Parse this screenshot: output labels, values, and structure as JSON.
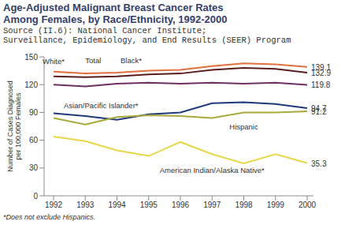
{
  "chart_data": {
    "type": "line",
    "title": [
      "Age-Adjusted Malignant Breast Cancer Rates",
      "Among Females, by Race/Ethnicity, 1992-2000"
    ],
    "subtitle": [
      "Source (II.6): National Cancer Institute;",
      "Surveillance, Epidemiology, and End Results (SEER) Program"
    ],
    "ylabel": [
      "Number of Cases Diagnosed",
      "per 100,000 Females"
    ],
    "annotations": [
      "*Does not exclude Hispanics."
    ],
    "categories": [
      "1992",
      "1993",
      "1994",
      "1995",
      "1996",
      "1997",
      "1998",
      "1999",
      "2000"
    ],
    "ylim": [
      0,
      150
    ],
    "yticks": [
      0,
      30,
      60,
      90,
      120,
      150
    ],
    "grid": false,
    "data_labels": true,
    "series": [
      {
        "name": "White*",
        "color": "#e2703f",
        "values": [
          134,
          132,
          133,
          135,
          136,
          140,
          143,
          142,
          139.1
        ],
        "value_labels": [
          null,
          null,
          null,
          null,
          null,
          null,
          null,
          null,
          "139.1"
        ]
      },
      {
        "name": "Total",
        "color": "#5a1c1c",
        "values": [
          129,
          128,
          129,
          131,
          132,
          136,
          138,
          137,
          132.9
        ],
        "value_labels": [
          null,
          null,
          null,
          null,
          null,
          null,
          null,
          null,
          "132.9"
        ]
      },
      {
        "name": "Black*",
        "color": "#6e2f63",
        "values": [
          120,
          118,
          121,
          122,
          121,
          122,
          121,
          122,
          119.8
        ],
        "value_labels": [
          null,
          null,
          null,
          null,
          null,
          null,
          null,
          null,
          "119.8"
        ]
      },
      {
        "name": "Asian/Pacific Islander*",
        "color": "#1f3a7a",
        "values": [
          89,
          86,
          82,
          88,
          90,
          100,
          101,
          99,
          94.7
        ],
        "value_labels": [
          null,
          null,
          null,
          null,
          null,
          null,
          null,
          null,
          "94.7"
        ]
      },
      {
        "name": "Hispanic",
        "color": "#a9a83c",
        "values": [
          84,
          77,
          85,
          87,
          86,
          84,
          90,
          90,
          91.2
        ],
        "value_labels": [
          null,
          null,
          null,
          null,
          null,
          null,
          null,
          null,
          "91.2"
        ]
      },
      {
        "name": "American Indian/Alaska Native*",
        "color": "#e8d64a",
        "values": [
          64,
          59,
          49,
          43,
          58,
          45,
          35,
          45,
          35.3
        ],
        "value_labels": [
          null,
          null,
          null,
          null,
          null,
          null,
          null,
          null,
          "35.3"
        ]
      }
    ]
  }
}
